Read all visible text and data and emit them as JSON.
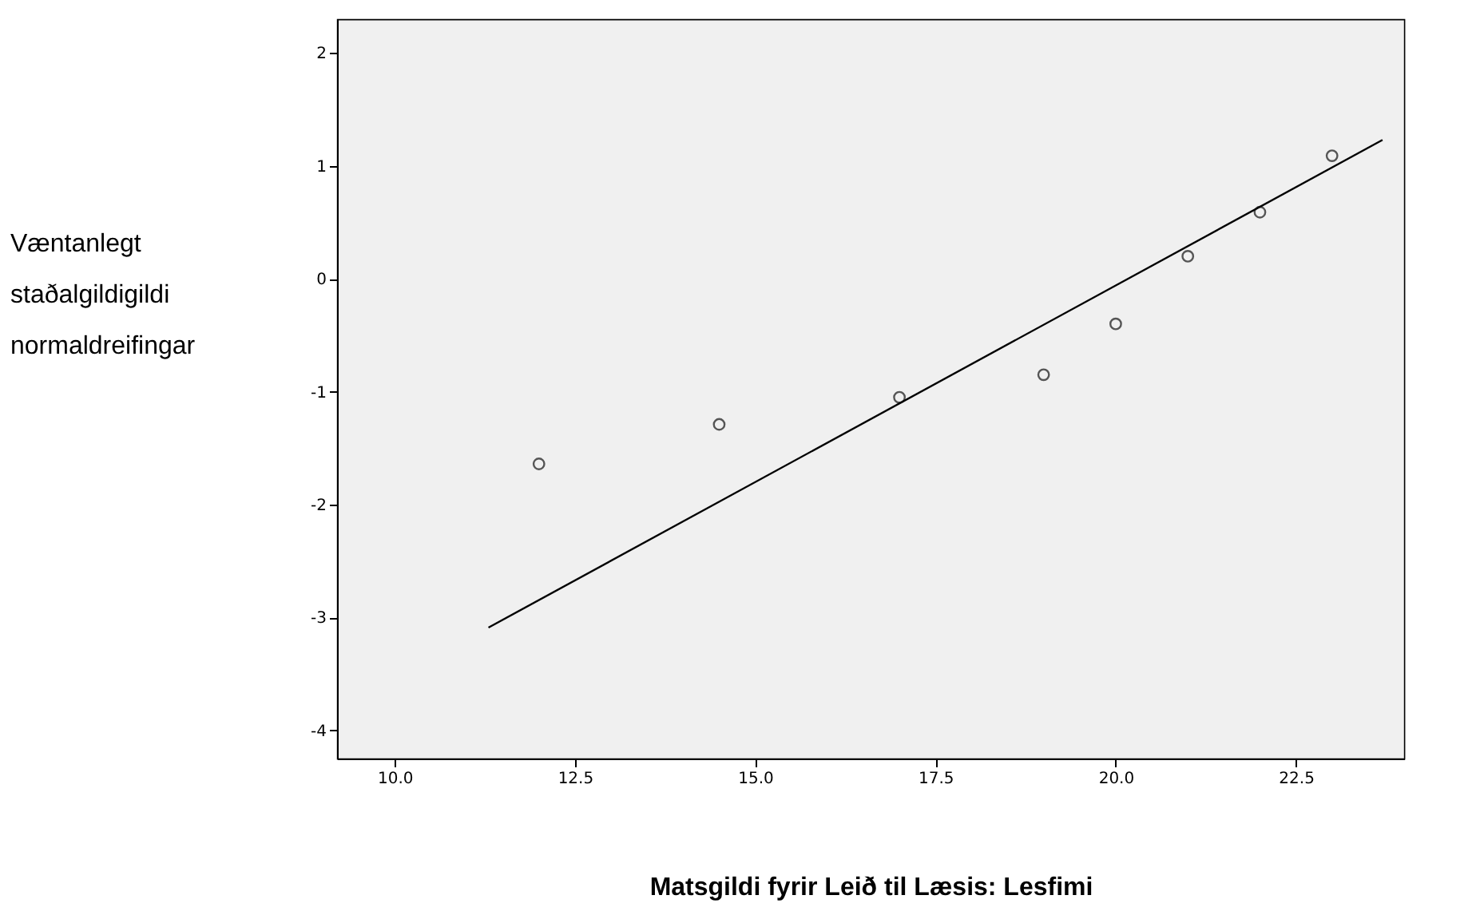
{
  "chart_data": {
    "type": "scatter",
    "xlabel": "Matsgildi fyrir Leið til Læsis: Lesfimi",
    "ylabel": "Væntanlegt staðalgildigildi normaldreifingar",
    "xlim": [
      9.2,
      24.0
    ],
    "ylim": [
      -4.25,
      2.3
    ],
    "xticks": [
      {
        "value": 10,
        "label": "10.0"
      },
      {
        "value": 12.5,
        "label": "12.5"
      },
      {
        "value": 15,
        "label": "15.0"
      },
      {
        "value": 17.5,
        "label": "17.5"
      },
      {
        "value": 20,
        "label": "20.0"
      },
      {
        "value": 22.5,
        "label": "22.5"
      }
    ],
    "yticks": [
      -4,
      -3,
      -2,
      -1,
      0,
      1,
      2
    ],
    "grid": false,
    "marker": "circle",
    "series": [
      {
        "color": "#555555",
        "x": [
          12,
          14.5,
          17,
          19,
          20,
          21,
          22,
          23
        ],
        "values": [
          -1.64,
          -1.29,
          -1.05,
          -0.85,
          -0.4,
          0.2,
          0.59,
          1.09
        ]
      },
      {
        "type": "line",
        "marker": "none",
        "color": "#000000",
        "x": [
          11.3,
          23.7
        ],
        "values": [
          -3.09,
          1.23
        ]
      }
    ]
  }
}
